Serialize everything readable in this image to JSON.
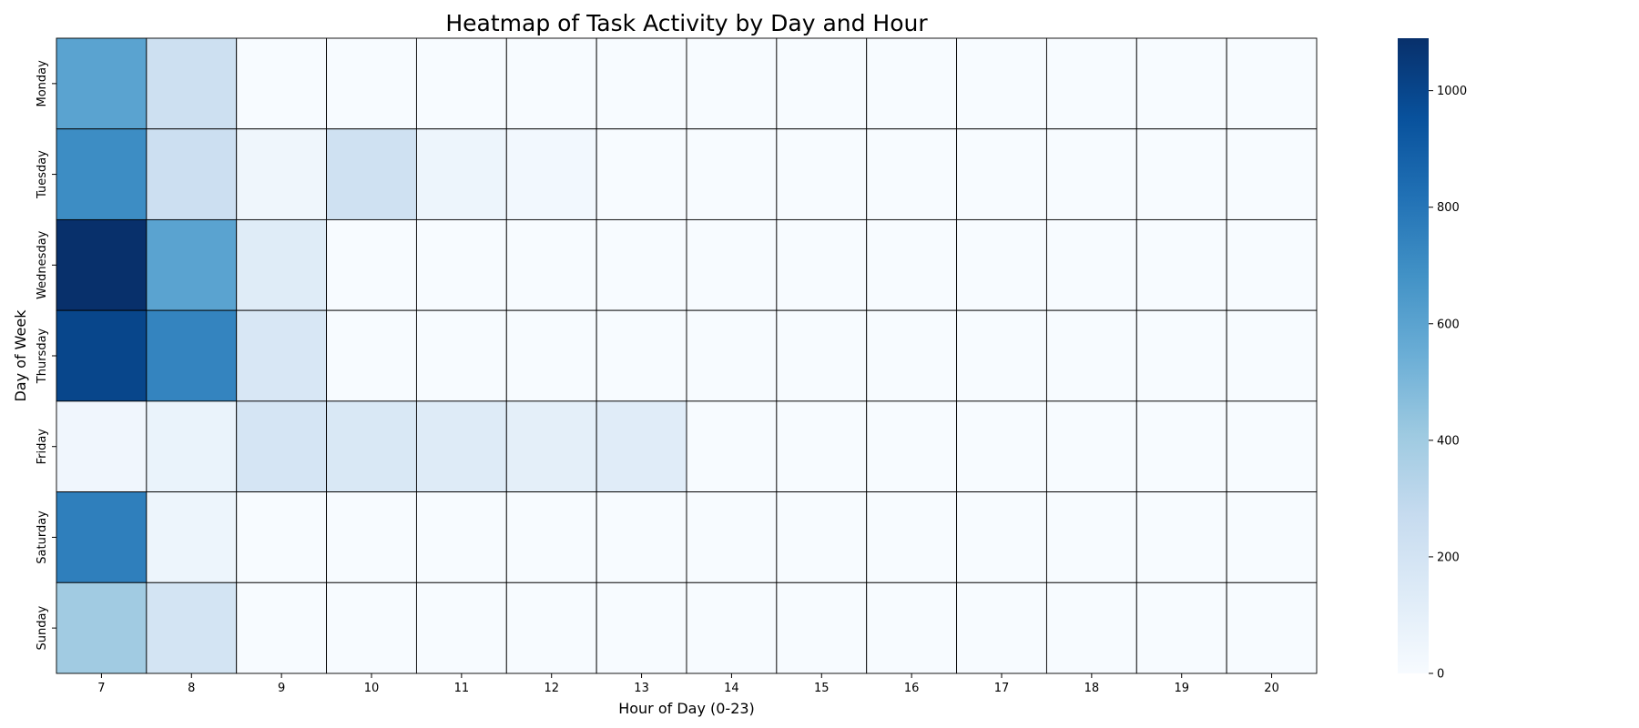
{
  "chart_data": {
    "type": "heatmap",
    "title": "Heatmap of Task Activity by Day and Hour",
    "xlabel": "Hour of Day (0-23)",
    "ylabel": "Day of Week",
    "x_categories": [
      "7",
      "8",
      "9",
      "10",
      "11",
      "12",
      "13",
      "14",
      "15",
      "16",
      "17",
      "18",
      "19",
      "20"
    ],
    "y_categories": [
      "Monday",
      "Tuesday",
      "Wednesday",
      "Thursday",
      "Friday",
      "Saturday",
      "Sunday"
    ],
    "values": [
      [
        600,
        230,
        0,
        0,
        0,
        0,
        0,
        0,
        0,
        0,
        0,
        0,
        0,
        0
      ],
      [
        700,
        240,
        45,
        220,
        55,
        25,
        0,
        0,
        0,
        0,
        0,
        0,
        0,
        0
      ],
      [
        1090,
        600,
        130,
        0,
        0,
        0,
        0,
        0,
        0,
        0,
        0,
        0,
        0,
        0
      ],
      [
        1000,
        740,
        170,
        0,
        0,
        0,
        0,
        0,
        0,
        0,
        0,
        0,
        0,
        0
      ],
      [
        40,
        70,
        185,
        165,
        135,
        105,
        125,
        0,
        0,
        0,
        0,
        0,
        0,
        0
      ],
      [
        760,
        55,
        0,
        0,
        0,
        0,
        0,
        0,
        0,
        0,
        0,
        0,
        0,
        0
      ],
      [
        400,
        200,
        0,
        0,
        0,
        0,
        0,
        0,
        0,
        0,
        0,
        0,
        0,
        0
      ]
    ],
    "colorbar": {
      "range": [
        0,
        1090
      ],
      "ticks": [
        0,
        200,
        400,
        600,
        800,
        1000
      ],
      "colormap": [
        "#f7fbff",
        "#deebf7",
        "#c6dbef",
        "#9ecae1",
        "#6baed6",
        "#4292c6",
        "#2171b5",
        "#08519c",
        "#08306b"
      ]
    },
    "cell_border_color": "#000000"
  }
}
